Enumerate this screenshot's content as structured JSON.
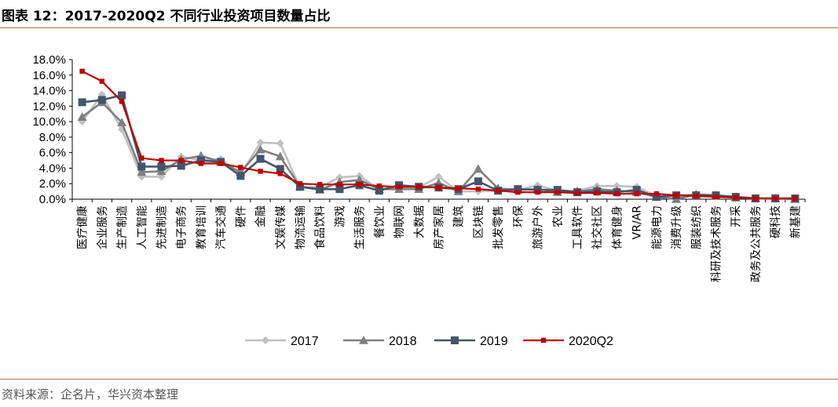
{
  "title": "图表 12：2017-2020Q2 不同行业投资项目数量占比",
  "source": "资料来源：企名片，华兴资本整理",
  "chart_data": {
    "type": "line",
    "categories": [
      "医疗健康",
      "企业服务",
      "生产制造",
      "人工智能",
      "先进制造",
      "电子商务",
      "教育培训",
      "汽车交通",
      "硬件",
      "金融",
      "文娱传媒",
      "物流运输",
      "食品饮料",
      "游戏",
      "生活服务",
      "餐饮业",
      "物联网",
      "大数据",
      "房产家居",
      "建筑",
      "区块链",
      "批发零售",
      "环保",
      "旅游户外",
      "农业",
      "工具软件",
      "社交社区",
      "体育健身",
      "VR/AR",
      "能源电力",
      "消费升级",
      "服装纺织",
      "科研及技术服务",
      "开采",
      "政务及公共服务",
      "硬科技",
      "新基建"
    ],
    "yticks": [
      "0.0%",
      "2.0%",
      "4.0%",
      "6.0%",
      "8.0%",
      "10.0%",
      "12.0%",
      "14.0%",
      "16.0%",
      "18.0%"
    ],
    "ylim": [
      0,
      18
    ],
    "series": [
      {
        "name": "2017",
        "color": "#c0c0c0",
        "marker": "diamond",
        "values": [
          10.0,
          13.5,
          9.0,
          2.9,
          2.9,
          5.5,
          5.0,
          5.2,
          3.2,
          7.3,
          7.2,
          1.5,
          1.6,
          2.8,
          3.0,
          1.3,
          1.5,
          1.5,
          2.9,
          1.0,
          1.0,
          1.1,
          1.2,
          1.8,
          1.1,
          1.1,
          1.7,
          1.7,
          1.6,
          0.4,
          0.1,
          0.7,
          0.4,
          0.3,
          0.1,
          0.0,
          0.0
        ]
      },
      {
        "name": "2018",
        "color": "#7f7f7f",
        "marker": "triangle",
        "values": [
          10.6,
          12.5,
          9.9,
          3.5,
          3.6,
          5.1,
          5.6,
          4.8,
          3.5,
          6.4,
          5.5,
          1.6,
          1.2,
          2.2,
          2.5,
          1.3,
          1.3,
          1.3,
          2.1,
          1.0,
          3.9,
          1.4,
          1.2,
          1.3,
          0.9,
          1.0,
          1.3,
          1.1,
          0.9,
          0.3,
          0.0,
          0.6,
          0.5,
          0.2,
          0.1,
          0.1,
          0.0
        ]
      },
      {
        "name": "2019",
        "color": "#44546a",
        "marker": "square",
        "values": [
          12.5,
          12.8,
          13.4,
          4.2,
          4.2,
          4.3,
          5.0,
          4.8,
          3.0,
          5.2,
          3.9,
          1.6,
          1.3,
          1.3,
          1.8,
          1.1,
          1.8,
          1.6,
          1.5,
          1.3,
          2.3,
          1.1,
          1.3,
          1.2,
          1.2,
          0.9,
          1.0,
          0.9,
          1.2,
          0.3,
          0.5,
          0.5,
          0.5,
          0.3,
          0.1,
          0.1,
          0.1
        ]
      },
      {
        "name": "2020Q2",
        "color": "#c00000",
        "marker": "smallsquare",
        "values": [
          16.5,
          15.2,
          12.6,
          5.3,
          5.0,
          5.0,
          4.6,
          4.6,
          4.1,
          3.6,
          3.3,
          2.0,
          1.9,
          1.9,
          1.9,
          1.7,
          1.6,
          1.6,
          1.5,
          1.4,
          1.3,
          1.1,
          0.9,
          0.9,
          0.9,
          0.8,
          0.8,
          0.7,
          0.7,
          0.7,
          0.5,
          0.4,
          0.3,
          0.2,
          0.1,
          0.1,
          0.1
        ]
      }
    ],
    "legend_position": "bottom-center",
    "grid": false
  }
}
